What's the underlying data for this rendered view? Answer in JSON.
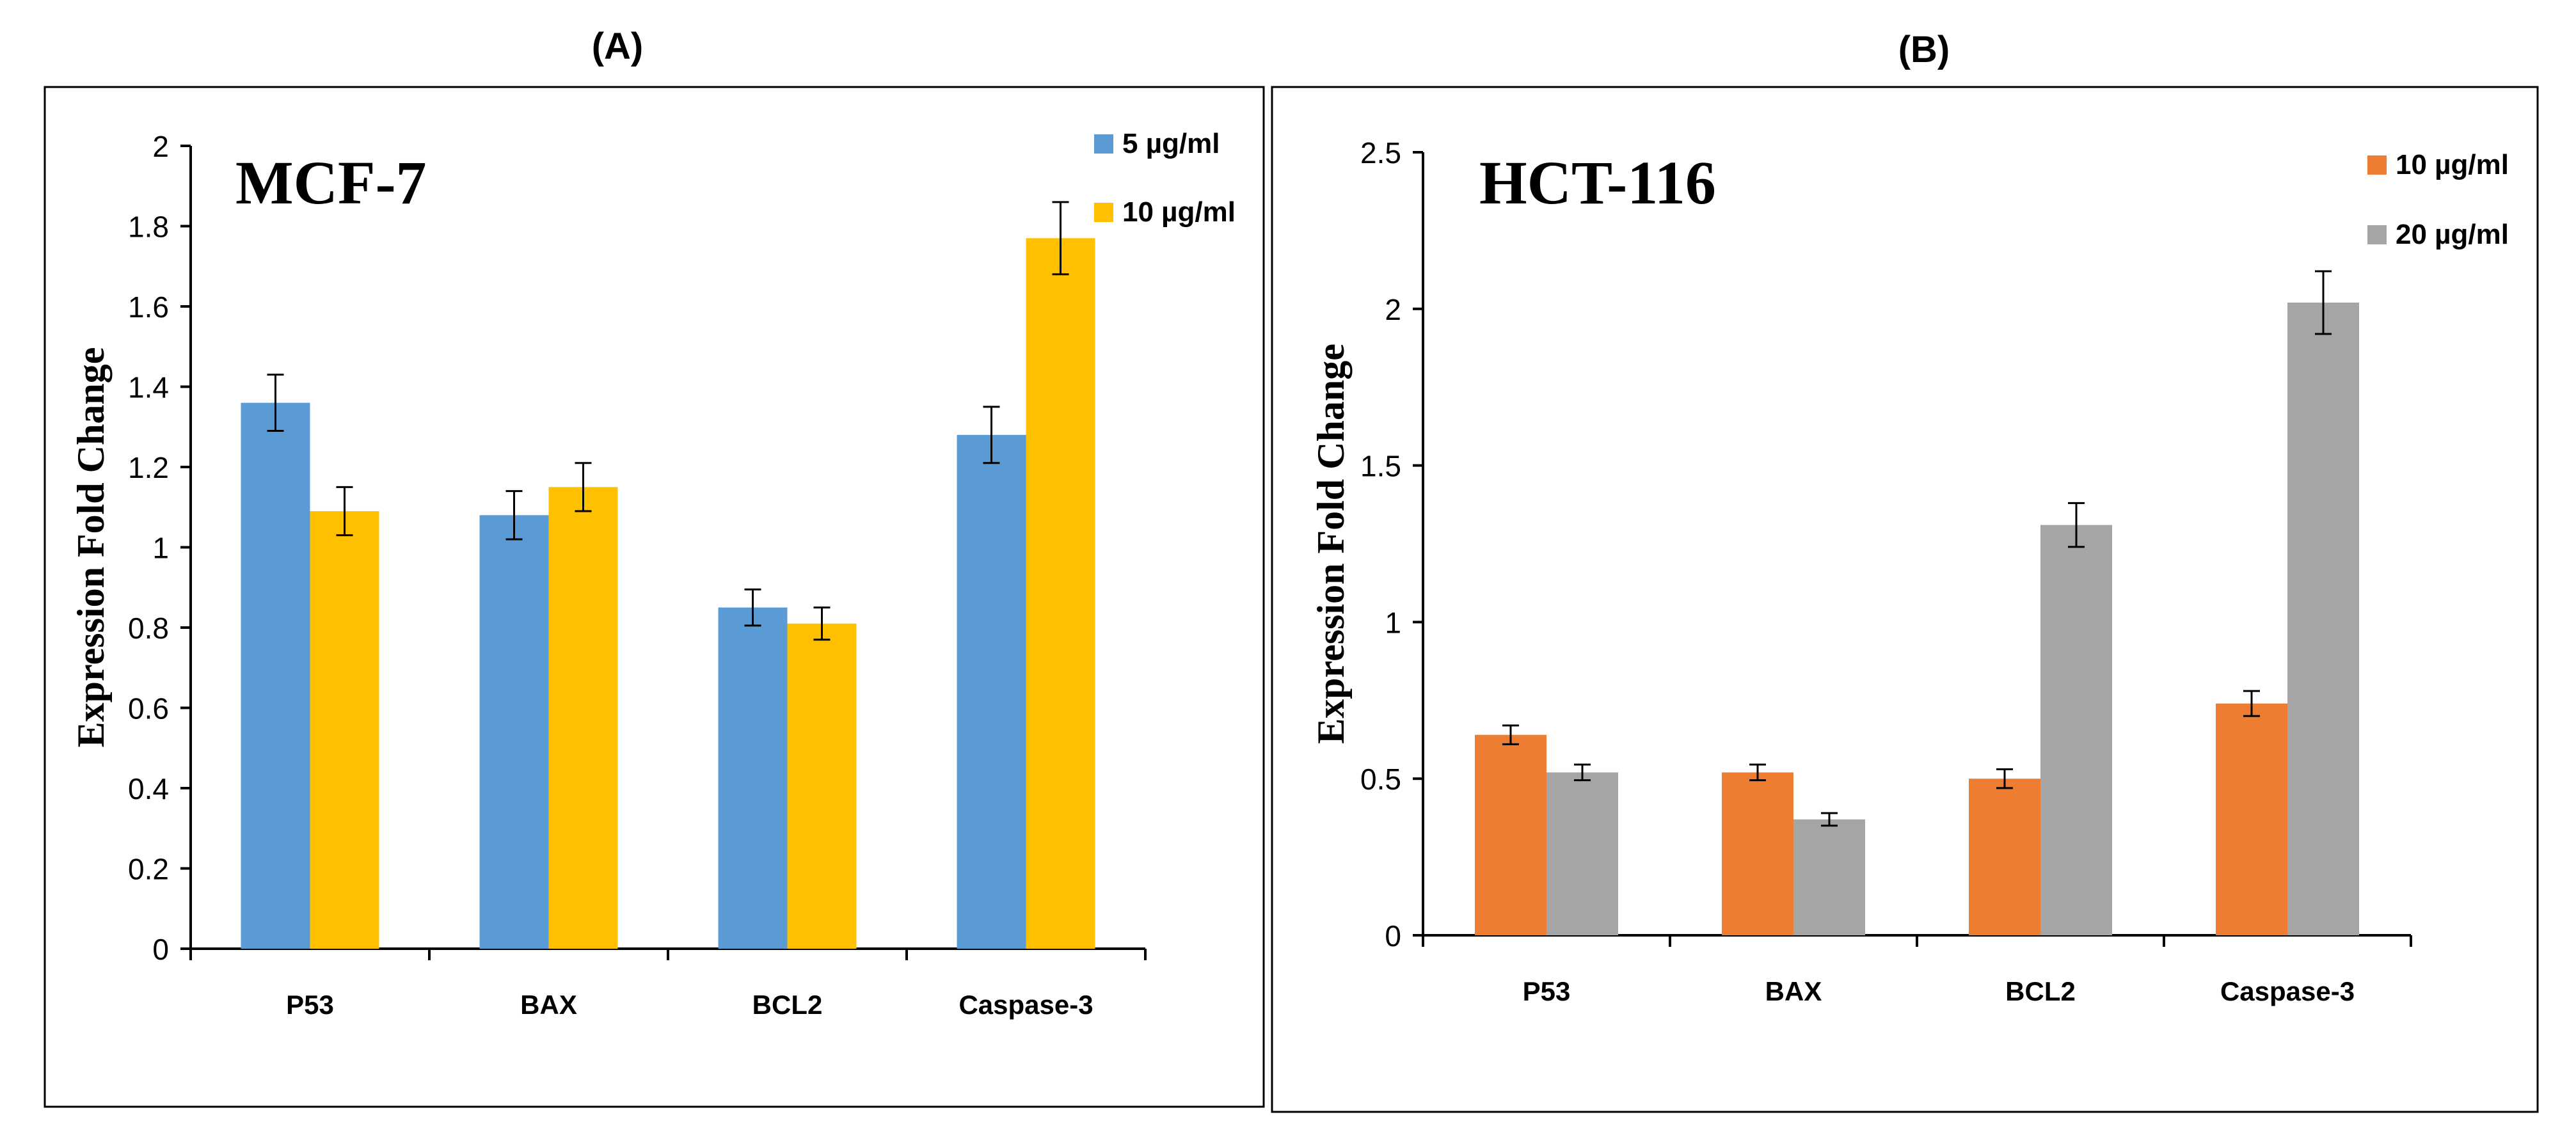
{
  "chart_data": [
    {
      "type": "bar",
      "panel_label": "(A)",
      "title": "MCF-7",
      "xlabel": "",
      "ylabel": "Expression  Fold Change",
      "ylim": [
        0,
        2
      ],
      "yticks": [
        "0",
        "0.2",
        "0.4",
        "0.6",
        "0.8",
        "1",
        "1.2",
        "1.4",
        "1.6",
        "1.8",
        "2"
      ],
      "categories": [
        "P53",
        "BAX",
        "BCL2",
        "Caspase-3"
      ],
      "series": [
        {
          "name": "5 µg/ml",
          "color": "#5B9BD5",
          "values": [
            1.36,
            1.08,
            0.85,
            1.28
          ],
          "errors": [
            0.07,
            0.06,
            0.045,
            0.07
          ]
        },
        {
          "name": "10 µg/ml",
          "color": "#FFC000",
          "values": [
            1.09,
            1.15,
            0.81,
            1.77
          ],
          "errors": [
            0.06,
            0.06,
            0.04,
            0.09
          ]
        }
      ],
      "grid": false,
      "legend": "top-right"
    },
    {
      "type": "bar",
      "panel_label": "(B)",
      "title": "HCT-116",
      "xlabel": "",
      "ylabel": "Expression  Fold Change",
      "ylim": [
        0,
        2.5
      ],
      "yticks": [
        "0",
        "0.5",
        "1",
        "1.5",
        "2",
        "2.5"
      ],
      "categories": [
        "P53",
        "BAX",
        "BCL2",
        "Caspase-3"
      ],
      "series": [
        {
          "name": "10 µg/ml",
          "color": "#ED7D31",
          "values": [
            0.64,
            0.52,
            0.5,
            0.74
          ],
          "errors": [
            0.03,
            0.025,
            0.03,
            0.04
          ]
        },
        {
          "name": "20 µg/ml",
          "color": "#A5A5A5",
          "values": [
            0.52,
            0.37,
            1.31,
            2.02
          ],
          "errors": [
            0.025,
            0.02,
            0.07,
            0.1
          ]
        }
      ],
      "grid": false,
      "legend": "top-right"
    }
  ]
}
